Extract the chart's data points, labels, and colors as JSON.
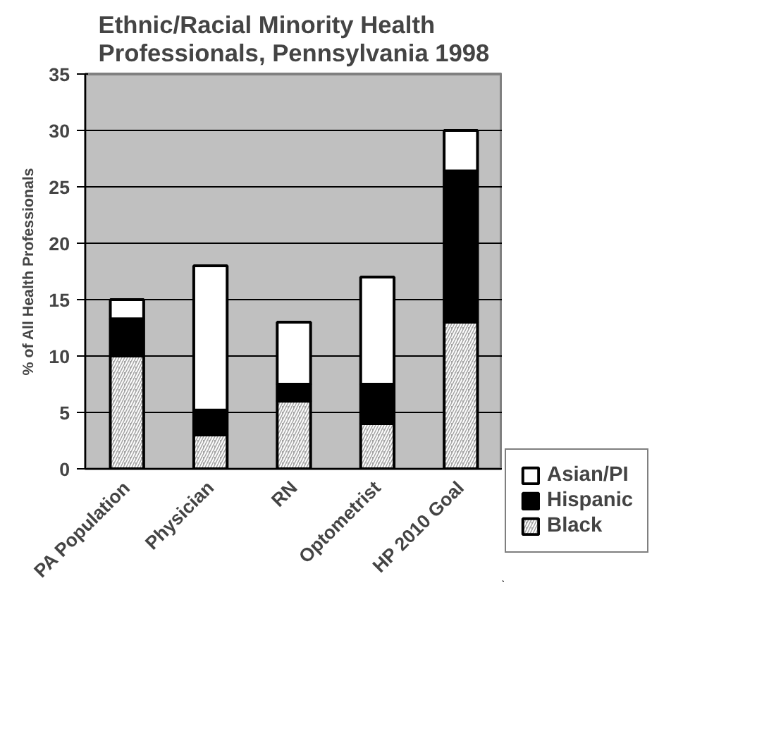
{
  "chart_data": {
    "type": "bar",
    "title": "Ethnic/Racial Minority Health Professionals, Pennsylvania 1998",
    "ylabel": "% of All Health Professionals",
    "categories": [
      "PA Population",
      "Physician",
      "RN",
      "Optometrist",
      "HP 2010 Goal"
    ],
    "stacked": true,
    "series": [
      {
        "name": "Black",
        "color": "#a6a6a6",
        "values": [
          10,
          3,
          6,
          4,
          13
        ]
      },
      {
        "name": "Hispanic",
        "color": "#000000",
        "values": [
          3.3,
          2.2,
          1.5,
          3.5,
          13.4
        ]
      },
      {
        "name": "Asian/PI",
        "color": "#ffffff",
        "values": [
          1.7,
          12.8,
          5.5,
          9.5,
          3.6
        ]
      }
    ],
    "ylim": [
      0,
      35
    ],
    "yticks": [
      0,
      5,
      10,
      15,
      20,
      25,
      30,
      35
    ],
    "grid": "y",
    "legend": "bottom right"
  }
}
